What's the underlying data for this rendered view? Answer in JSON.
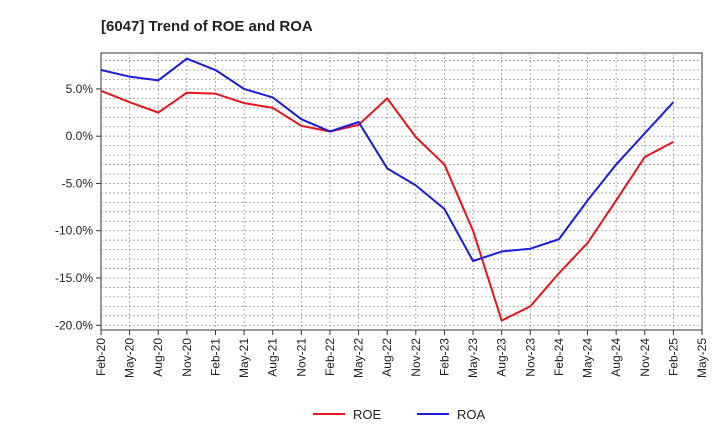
{
  "chart_data": {
    "type": "line",
    "title": "[6047]  Trend of ROE and ROA",
    "xlabel": "",
    "ylabel": "",
    "y_tick_labels": [
      "5.0%",
      "0.0%",
      "-5.0%",
      "-10.0%",
      "-15.0%",
      "-20.0%"
    ],
    "y_tick_values": [
      5,
      0,
      -5,
      -10,
      -15,
      -20
    ],
    "ylim": [
      -20.5,
      8.8
    ],
    "x_tick_labels": [
      "Feb-20",
      "May-20",
      "Aug-20",
      "Nov-20",
      "Feb-21",
      "May-21",
      "Aug-21",
      "Nov-21",
      "Feb-22",
      "May-22",
      "Aug-22",
      "Nov-22",
      "Feb-23",
      "May-23",
      "Aug-23",
      "Nov-23",
      "Feb-24",
      "May-24",
      "Aug-24",
      "Nov-24",
      "Feb-25",
      "May-25"
    ],
    "grid": true,
    "legend_position": "bottom-center",
    "series": [
      {
        "name": "ROE",
        "color": "#e8141c",
        "values": [
          4.8,
          3.6,
          2.5,
          4.6,
          4.5,
          3.5,
          3.0,
          1.1,
          0.5,
          1.2,
          4.0,
          -0.1,
          -3.0,
          -10.0,
          -19.5,
          -18.0,
          -14.5,
          -11.3,
          -6.8,
          -2.2,
          -0.6
        ]
      },
      {
        "name": "ROA",
        "color": "#1c1cdc",
        "values": [
          7.0,
          6.3,
          5.9,
          8.2,
          7.0,
          5.0,
          4.1,
          1.8,
          0.5,
          1.5,
          -3.4,
          -5.2,
          -7.7,
          -13.2,
          -12.2,
          -11.9,
          -10.9,
          -6.8,
          -3.0,
          0.3,
          3.6
        ]
      }
    ]
  }
}
